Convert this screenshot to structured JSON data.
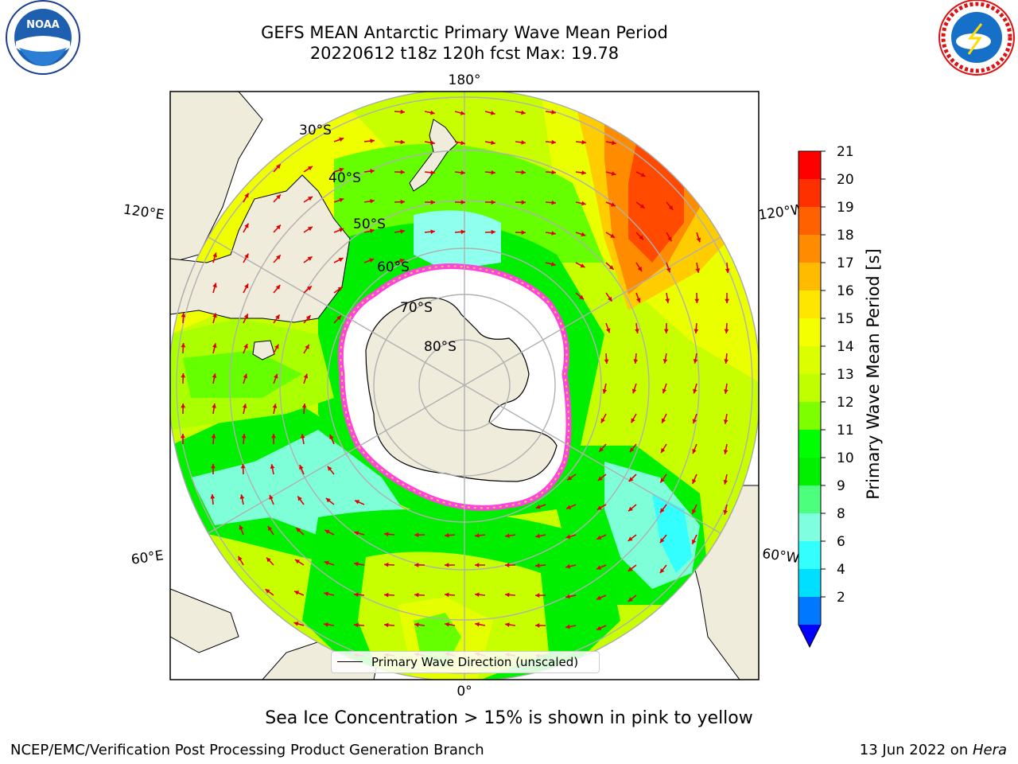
{
  "title": "GEFS MEAN Antarctic Primary Wave Mean Period",
  "subtitle": "20220612 t18z 120h fcst   Max: 19.78",
  "longitude_labels": {
    "top": "180°",
    "bottom": "0°",
    "left_upper": "120°E",
    "left_lower": "60°E",
    "right_upper": "120°W",
    "right_lower": "60°W"
  },
  "latitude_labels": [
    "30°S",
    "40°S",
    "50°S",
    "60°S",
    "70°S",
    "80°S"
  ],
  "colorbar": {
    "title": "Primary Wave Mean Period [s]",
    "ticks": [
      "21",
      "20",
      "19",
      "18",
      "17",
      "16",
      "15",
      "14",
      "13",
      "12",
      "11",
      "10",
      "9",
      "8",
      "6",
      "4",
      "2"
    ],
    "colors": [
      "#ff0000",
      "#ff3000",
      "#ff6000",
      "#ff8c00",
      "#ffbb00",
      "#ffe600",
      "#f4ff00",
      "#dcff00",
      "#bfff00",
      "#7dff00",
      "#00ff00",
      "#00f000",
      "#4cff7c",
      "#7fffe0",
      "#33ffff",
      "#00dfff",
      "#0078ff",
      "#0000ff"
    ],
    "extend": "min"
  },
  "legend": {
    "label": "Primary Wave Direction (unscaled)",
    "placement": "bottom-center"
  },
  "logos": {
    "left": "NOAA",
    "right": "NATIONAL WEATHER SERVICE"
  },
  "note": "Sea Ice Concentration > 15% is shown in pink to yellow",
  "credit": "NCEP/EMC/Verification Post Processing Product Generation Branch",
  "date_stamp": {
    "date": "13 Jun 2022 on ",
    "machine": "Hera"
  }
}
